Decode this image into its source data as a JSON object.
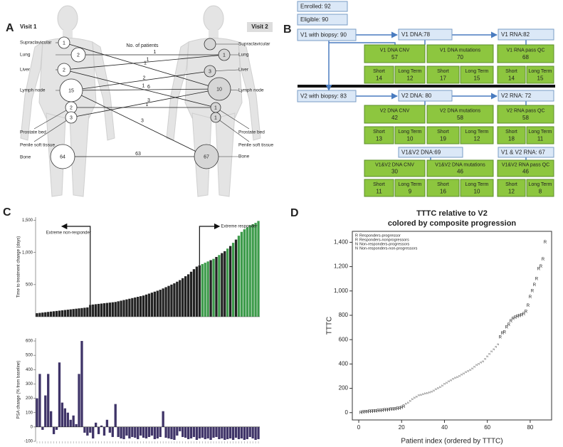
{
  "panel_a": {
    "panel_label": "A",
    "visit1": "Visit 1",
    "visit2": "Visit 2",
    "legend": "No. of patients",
    "sites": [
      "Supraclavicular",
      "Lung",
      "Liver",
      "Lymph node",
      "Prostate bed",
      "Penile soft tissue",
      "Bone"
    ],
    "left_counts": [
      1,
      2,
      2,
      15,
      2,
      3,
      64
    ],
    "right_counts": [
      null,
      1,
      3,
      10,
      1,
      1,
      67
    ],
    "flow_counts": [
      1,
      1,
      1,
      2,
      6,
      1,
      3,
      1,
      3,
      63
    ]
  },
  "panel_b": {
    "panel_label": "B",
    "stages": [
      "Enrolled: 92",
      "Eligible: 90",
      "V1 with biopsy: 90",
      "V1 DNA:78",
      "V1 RNA:82",
      "V2 with biopsy: 83",
      "V2 DNA: 80",
      "V2 RNA: 72",
      "V1&V2 DNA:69",
      "V1 & V2 RNA: 67"
    ],
    "groups": [
      {
        "label": "V1 DNA CNV",
        "value": 57
      },
      {
        "label": "V1 DNA mutations",
        "value": 70
      },
      {
        "label": "V1 RNA pass QC",
        "value": 68
      },
      {
        "label": "Short",
        "value": 14
      },
      {
        "label": "Long Term",
        "value": 12
      },
      {
        "label": "Short",
        "value": 17
      },
      {
        "label": "Long Term",
        "value": 15
      },
      {
        "label": "Short",
        "value": 14
      },
      {
        "label": "Long Term",
        "value": 15
      },
      {
        "label": "V2 DNA CNV",
        "value": 42
      },
      {
        "label": "V2 DNA mutations",
        "value": 58
      },
      {
        "label": "V2 RNA pass QC",
        "value": 58
      },
      {
        "label": "Short",
        "value": 13
      },
      {
        "label": "Long Term",
        "value": 10
      },
      {
        "label": "Short",
        "value": 19
      },
      {
        "label": "Long Term",
        "value": 12
      },
      {
        "label": "Short",
        "value": 18
      },
      {
        "label": "Long Term",
        "value": 11
      },
      {
        "label": "V1&V2 DNA CNV",
        "value": 30
      },
      {
        "label": "V1&V2 DNA mutations",
        "value": 46
      },
      {
        "label": "V1&V2 RNA pass QC",
        "value": 46
      },
      {
        "label": "Short",
        "value": 11
      },
      {
        "label": "Long Term",
        "value": 9
      },
      {
        "label": "Short",
        "value": 16
      },
      {
        "label": "Long Term",
        "value": 10
      },
      {
        "label": "Short",
        "value": 12
      },
      {
        "label": "Long Term",
        "value": 8
      }
    ]
  },
  "chart_data": [
    {
      "type": "bar",
      "panel_label": "C",
      "ylabel": "Time to treatment change (days)",
      "annotations": [
        "Extreme non-responder",
        "Extreme responder"
      ],
      "ylim": [
        0,
        1550
      ],
      "yticks": [
        500,
        {
          "value": 1000,
          "label": "1,000"
        },
        {
          "value": 1500,
          "label": "1,500"
        }
      ],
      "values": [
        55,
        60,
        65,
        70,
        75,
        80,
        85,
        90,
        95,
        100,
        105,
        110,
        115,
        120,
        125,
        130,
        135,
        140,
        145,
        185,
        190,
        195,
        200,
        205,
        210,
        215,
        220,
        225,
        230,
        240,
        250,
        260,
        270,
        280,
        290,
        300,
        310,
        320,
        330,
        345,
        360,
        375,
        390,
        405,
        420,
        440,
        460,
        480,
        500,
        520,
        545,
        570,
        600,
        630,
        660,
        700,
        740,
        780,
        800,
        820,
        840,
        860,
        880,
        900,
        930,
        960,
        990,
        1020,
        1060,
        1100,
        1150,
        1200,
        1260,
        1320,
        1360,
        1390,
        1420,
        1440,
        1460,
        1490
      ],
      "colors": [
        "#222",
        "#222",
        "#222",
        "#222",
        "#222",
        "#222",
        "#222",
        "#222",
        "#222",
        "#222",
        "#222",
        "#222",
        "#222",
        "#222",
        "#222",
        "#222",
        "#222",
        "#222",
        "#222",
        "#222",
        "#222",
        "#222",
        "#222",
        "#222",
        "#222",
        "#222",
        "#222",
        "#222",
        "#222",
        "#222",
        "#222",
        "#222",
        "#222",
        "#222",
        "#222",
        "#222",
        "#222",
        "#222",
        "#222",
        "#222",
        "#222",
        "#222",
        "#222",
        "#222",
        "#222",
        "#222",
        "#222",
        "#222",
        "#222",
        "#222",
        "#222",
        "#222",
        "#222",
        "#222",
        "#222",
        "#222",
        "#222",
        "#222",
        "#222",
        "#3d9b4b",
        "#3d9b4b",
        "#3d9b4b",
        "#222",
        "#3d9b4b",
        "#222",
        "#3d9b4b",
        "#222",
        "#222",
        "#3d9b4b",
        "#222",
        "#3d9b4b",
        "#222",
        "#3d9b4b",
        "#3d9b4b",
        "#3d9b4b",
        "#3d9b4b",
        "#3d9b4b",
        "#3d9b4b",
        "#3d9b4b",
        "#3d9b4b"
      ]
    },
    {
      "type": "bar",
      "ylabel": "PSA change (% from baseline)",
      "color": "#3f3468",
      "ylim": [
        -100,
        620
      ],
      "yticks": [
        -100,
        0,
        100,
        200,
        300,
        400,
        500,
        600
      ],
      "values": [
        200,
        370,
        -20,
        220,
        370,
        110,
        -50,
        -20,
        450,
        170,
        130,
        100,
        50,
        80,
        20,
        370,
        600,
        -40,
        -60,
        -40,
        -80,
        30,
        -50,
        10,
        -60,
        50,
        -40,
        -70,
        160,
        -70,
        -80,
        -85,
        -60,
        -80,
        -70,
        -75,
        -85,
        -60,
        -75,
        -80,
        -70,
        -60,
        -85,
        -80,
        -70,
        110,
        -75,
        -80,
        -85,
        -90,
        -60,
        -30,
        -70,
        -75,
        -85,
        -80,
        -70,
        -90,
        -80,
        -75,
        -85,
        -80,
        -90,
        -75,
        -70,
        -85,
        -80,
        -90,
        -85,
        -80,
        -90,
        -75,
        -85,
        -80,
        -90,
        -85,
        -70,
        -80,
        -90,
        -85
      ]
    },
    {
      "type": "scatter",
      "panel_label": "D",
      "title": "TTTC relative to V2",
      "subtitle": "colored by composite progression",
      "xlabel": "Patient index (ordered by TTTC)",
      "ylabel": "TTTC",
      "legend": "top-left",
      "xlim": [
        -3,
        90
      ],
      "xticks": [
        0,
        20,
        40,
        60,
        80
      ],
      "ylim": [
        -60,
        1490
      ],
      "yticks": [
        0,
        200,
        400,
        600,
        800,
        {
          "value": 1000,
          "label": "1,000"
        },
        {
          "value": 1200,
          "label": "1,200"
        },
        {
          "value": 1400,
          "label": "1,400"
        }
      ],
      "series": [
        {
          "name": "Responders-progressor",
          "marker": "R",
          "color": "#e0141e",
          "x": [
            1,
            2,
            3,
            4,
            5,
            6,
            7,
            8,
            9,
            10,
            11,
            12,
            13,
            14,
            15,
            16,
            17,
            18,
            19,
            20,
            21,
            78,
            84,
            85
          ],
          "values": [
            0,
            2,
            4,
            5,
            7,
            9,
            10,
            12,
            14,
            15,
            17,
            19,
            20,
            22,
            24,
            26,
            28,
            30,
            35,
            40,
            48,
            830,
            1180,
            1200
          ]
        },
        {
          "name": "Responders-nonprogressors",
          "marker": "R",
          "color": "#3aa832",
          "x": [
            66,
            67,
            68,
            69,
            70,
            71,
            72,
            73,
            74,
            75,
            76,
            77,
            79,
            80,
            81,
            82,
            83,
            86,
            87
          ],
          "values": [
            620,
            650,
            660,
            700,
            720,
            750,
            770,
            780,
            790,
            795,
            800,
            810,
            880,
            950,
            1000,
            1050,
            1100,
            1260,
            1400
          ]
        },
        {
          "name": "Non-responders-progressors",
          "marker": "N",
          "color": "#e0141e",
          "x": [
            22,
            23,
            24,
            25,
            26,
            27,
            28,
            29,
            30,
            31,
            32,
            33,
            34,
            35,
            36,
            37,
            38,
            39,
            40
          ],
          "values": [
            70,
            80,
            95,
            110,
            120,
            130,
            140,
            145,
            150,
            155,
            160,
            165,
            170,
            180,
            190,
            200,
            210,
            220,
            235
          ]
        },
        {
          "name": "Non-responders-non-progressors",
          "marker": "N",
          "color": "#3aa832",
          "x": [
            41,
            42,
            43,
            44,
            45,
            46,
            47,
            48,
            49,
            50,
            51,
            52,
            53,
            54,
            55,
            56,
            57,
            58,
            59,
            60,
            61,
            62,
            63,
            64,
            65
          ],
          "values": [
            245,
            255,
            265,
            275,
            285,
            290,
            300,
            310,
            320,
            330,
            340,
            350,
            360,
            375,
            390,
            400,
            410,
            420,
            440,
            460,
            480,
            500,
            520,
            540,
            560
          ]
        }
      ]
    }
  ]
}
